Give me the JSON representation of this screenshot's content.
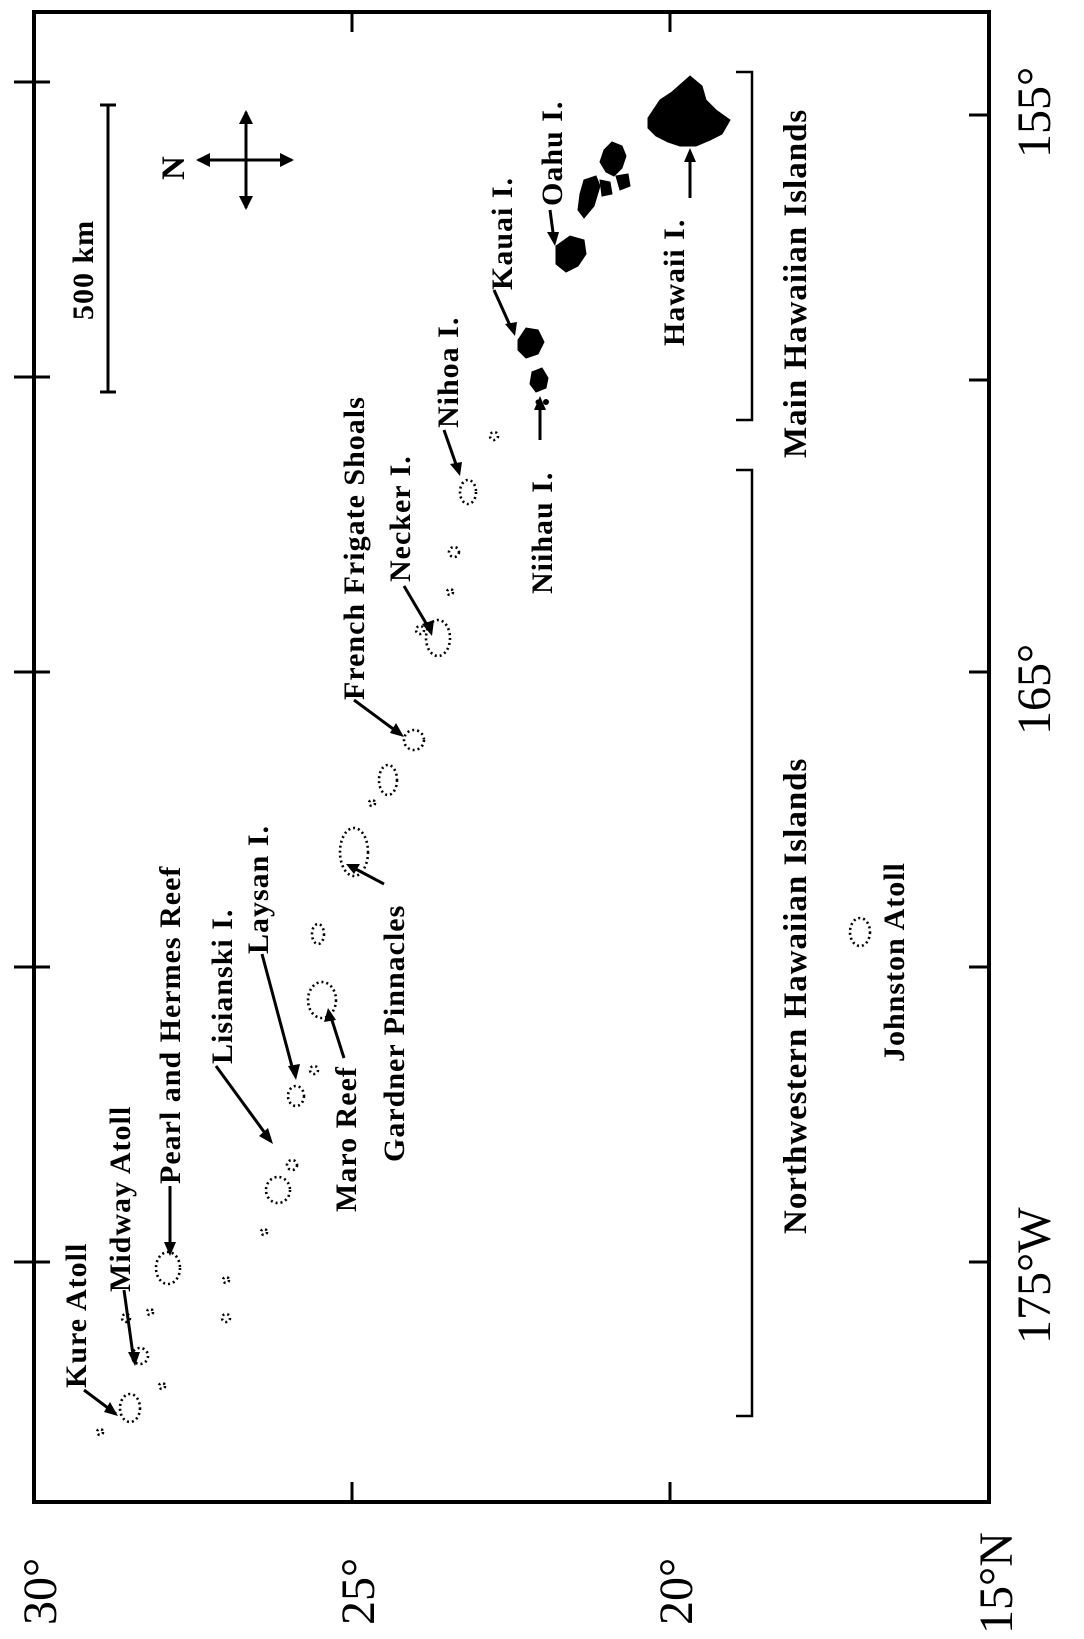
{
  "map": {
    "lat_ticks": [
      "30°",
      "25°",
      "20°",
      "15°N"
    ],
    "lon_ticks": [
      "175°W",
      "165°",
      "155°"
    ],
    "scale_bar_label": "500 km",
    "north_label": "N",
    "island_labels": {
      "kure": "Kure Atoll",
      "midway": "Midway Atoll",
      "pearl_hermes": "Pearl and Hermes Reef",
      "lisianski": "Lisianski I.",
      "laysan": "Laysan I.",
      "maro": "Maro Reef",
      "gardner": "Gardner Pinnacles",
      "french_frigate": "French Frigate Shoals",
      "necker": "Necker I.",
      "nihoa": "Nihoa I.",
      "kauai": "Kauai I.",
      "oahu": "Oahu I.",
      "niihau": "Niihau I.",
      "hawaii": "Hawaii I.",
      "johnston": "Johnston Atoll"
    },
    "group_labels": {
      "main": "Main Hawaiian Islands",
      "northwestern": "Northwestern Hawaiian Islands"
    }
  }
}
